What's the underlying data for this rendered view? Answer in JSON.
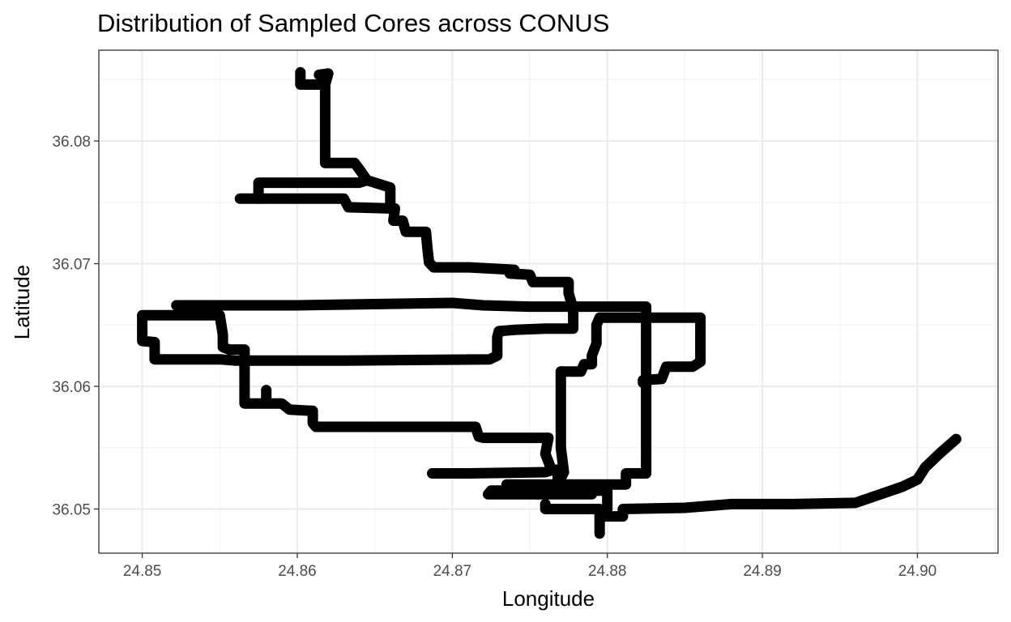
{
  "chart_data": {
    "type": "scatter",
    "title": "Distribution of Sampled Cores across CONUS",
    "xlabel": "Longitude",
    "ylabel": "Latitude",
    "xlim": [
      24.8472,
      24.9052
    ],
    "ylim": [
      36.0464,
      36.0874
    ],
    "x_ticks": [
      24.85,
      24.86,
      24.87,
      24.88,
      24.89,
      24.9
    ],
    "x_tick_labels": [
      "24.85",
      "24.86",
      "24.87",
      "24.88",
      "24.89",
      "24.90"
    ],
    "y_ticks": [
      36.05,
      36.06,
      36.07,
      36.08
    ],
    "y_tick_labels": [
      "36.05",
      "36.06",
      "36.07",
      "36.08"
    ],
    "grid": true,
    "marker_color": "#000000",
    "tracks": [
      {
        "points": [
          [
            24.8602,
            36.0856
          ],
          [
            24.8602,
            36.0846
          ],
          [
            24.8618,
            36.0846
          ],
          [
            24.862,
            36.0855
          ],
          [
            24.8614,
            36.0854
          ],
          [
            24.8618,
            36.085
          ],
          [
            24.8618,
            36.0782
          ],
          [
            24.8637,
            36.0782
          ],
          [
            24.864,
            36.0777
          ],
          [
            24.8645,
            36.0768
          ],
          [
            24.866,
            36.0762
          ],
          [
            24.866,
            36.0745
          ],
          [
            24.8663,
            36.0745
          ],
          [
            24.8662,
            36.0735
          ],
          [
            24.8668,
            36.0735
          ],
          [
            24.867,
            36.0726
          ],
          [
            24.8683,
            36.0726
          ],
          [
            24.8684,
            36.0712
          ],
          [
            24.8685,
            36.0701
          ],
          [
            24.8688,
            36.0697
          ],
          [
            24.8711,
            36.0697
          ],
          [
            24.874,
            36.0695
          ],
          [
            24.8737,
            36.0692
          ],
          [
            24.875,
            36.0691
          ],
          [
            24.8752,
            36.0685
          ],
          [
            24.8775,
            36.0685
          ],
          [
            24.8775,
            36.0676
          ],
          [
            24.8778,
            36.0663
          ],
          [
            24.8778,
            36.0647
          ],
          [
            24.8765,
            36.0647
          ],
          [
            24.876,
            36.0647
          ],
          [
            24.874,
            36.0646
          ],
          [
            24.873,
            36.0645
          ],
          [
            24.8729,
            36.064
          ],
          [
            24.8729,
            36.0625
          ],
          [
            24.8724,
            36.0622
          ],
          [
            24.863,
            36.0621
          ],
          [
            24.856,
            36.0621
          ],
          [
            24.855,
            36.0622
          ],
          [
            24.8508,
            36.0622
          ],
          [
            24.8508,
            36.0636
          ],
          [
            24.85,
            36.0637
          ],
          [
            24.85,
            36.0658
          ],
          [
            24.851,
            36.0658
          ],
          [
            24.855,
            36.0658
          ],
          [
            24.8552,
            36.0642
          ],
          [
            24.8552,
            36.0632
          ],
          [
            24.8556,
            36.063
          ],
          [
            24.8566,
            36.063
          ],
          [
            24.8566,
            36.0596
          ],
          [
            24.8566,
            36.0586
          ],
          [
            24.857,
            36.0586
          ],
          [
            24.859,
            36.0586
          ],
          [
            24.8595,
            36.0581
          ],
          [
            24.861,
            36.058
          ],
          [
            24.861,
            36.057
          ],
          [
            24.8612,
            36.0567
          ],
          [
            24.866,
            36.0567
          ],
          [
            24.8715,
            36.0567
          ],
          [
            24.8717,
            36.0559
          ],
          [
            24.872,
            36.0558
          ],
          [
            24.876,
            36.0558
          ],
          [
            24.8762,
            36.0558
          ],
          [
            24.876,
            36.0545
          ],
          [
            24.8764,
            36.0532
          ],
          [
            24.8768,
            36.0532
          ],
          [
            24.8768,
            36.052
          ],
          [
            24.877,
            36.0515
          ],
          [
            24.88,
            36.0515
          ],
          [
            24.88,
            36.05
          ]
        ]
      },
      {
        "points": [
          [
            24.8563,
            36.0753
          ],
          [
            24.86,
            36.0753
          ],
          [
            24.863,
            36.0753
          ],
          [
            24.8633,
            36.0746
          ],
          [
            24.866,
            36.0745
          ],
          [
            24.866,
            36.0747
          ]
        ]
      },
      {
        "points": [
          [
            24.8575,
            36.0753
          ],
          [
            24.8575,
            36.0766
          ],
          [
            24.864,
            36.0766
          ],
          [
            24.8645,
            36.0768
          ]
        ]
      },
      {
        "points": [
          [
            24.858,
            36.0597
          ],
          [
            24.858,
            36.059
          ]
        ]
      },
      {
        "points": [
          [
            24.8522,
            36.0666
          ],
          [
            24.86,
            36.0666
          ],
          [
            24.87,
            36.0668
          ],
          [
            24.872,
            36.0666
          ],
          [
            24.875,
            36.0665
          ],
          [
            24.877,
            36.0665
          ],
          [
            24.878,
            36.0665
          ],
          [
            24.88,
            36.0665
          ],
          [
            24.8815,
            36.0665
          ],
          [
            24.8825,
            36.0665
          ],
          [
            24.8825,
            36.0655
          ],
          [
            24.8825,
            36.06
          ],
          [
            24.8825,
            36.055
          ],
          [
            24.8825,
            36.0529
          ],
          [
            24.8815,
            36.0529
          ],
          [
            24.8812,
            36.0529
          ],
          [
            24.8812,
            36.052
          ],
          [
            24.8784,
            36.052
          ],
          [
            24.878,
            36.052
          ],
          [
            24.8745,
            36.052
          ],
          [
            24.8735,
            36.052
          ],
          [
            24.8735,
            36.0515
          ],
          [
            24.8725,
            36.0515
          ],
          [
            24.8723,
            36.0512
          ],
          [
            24.873,
            36.0512
          ],
          [
            24.875,
            36.0512
          ],
          [
            24.879,
            36.0512
          ]
        ]
      },
      {
        "points": [
          [
            24.8823,
            36.0603
          ],
          [
            24.8823,
            36.0605
          ],
          [
            24.8835,
            36.0606
          ],
          [
            24.8838,
            36.0616
          ],
          [
            24.8855,
            36.0616
          ],
          [
            24.886,
            36.062
          ],
          [
            24.886,
            36.063
          ],
          [
            24.886,
            36.0656
          ],
          [
            24.883,
            36.0656
          ],
          [
            24.88,
            36.0656
          ],
          [
            24.8795,
            36.0656
          ],
          [
            24.8793,
            36.065
          ],
          [
            24.8793,
            36.0635
          ],
          [
            24.879,
            36.0625
          ],
          [
            24.879,
            36.0618
          ],
          [
            24.8785,
            36.0618
          ],
          [
            24.8783,
            36.0612
          ],
          [
            24.8775,
            36.0612
          ],
          [
            24.8772,
            36.0612
          ],
          [
            24.877,
            36.0612
          ]
        ]
      },
      {
        "points": [
          [
            24.877,
            36.0612
          ],
          [
            24.877,
            36.058
          ],
          [
            24.877,
            36.055
          ],
          [
            24.8772,
            36.053
          ],
          [
            24.8768,
            36.052
          ]
        ]
      },
      {
        "points": [
          [
            24.8687,
            36.0529
          ],
          [
            24.871,
            36.0529
          ],
          [
            24.876,
            36.053
          ],
          [
            24.8765,
            36.0532
          ]
        ]
      },
      {
        "points": [
          [
            24.8795,
            36.048
          ],
          [
            24.8795,
            36.0494
          ],
          [
            24.881,
            36.0494
          ],
          [
            24.881,
            36.05
          ],
          [
            24.885,
            36.0501
          ],
          [
            24.888,
            36.0504
          ],
          [
            24.892,
            36.0504
          ],
          [
            24.896,
            36.0505
          ],
          [
            24.899,
            36.0518
          ],
          [
            24.9,
            36.0524
          ],
          [
            24.9005,
            36.0534
          ],
          [
            24.9015,
            36.0546
          ],
          [
            24.9025,
            36.0557
          ]
        ]
      },
      {
        "points": [
          [
            24.8755,
            36.0519
          ],
          [
            24.8755,
            36.0512
          ]
        ]
      },
      {
        "points": [
          [
            24.876,
            36.0504
          ],
          [
            24.876,
            36.05
          ],
          [
            24.8795,
            36.05
          ],
          [
            24.8795,
            36.0495
          ]
        ]
      }
    ]
  }
}
